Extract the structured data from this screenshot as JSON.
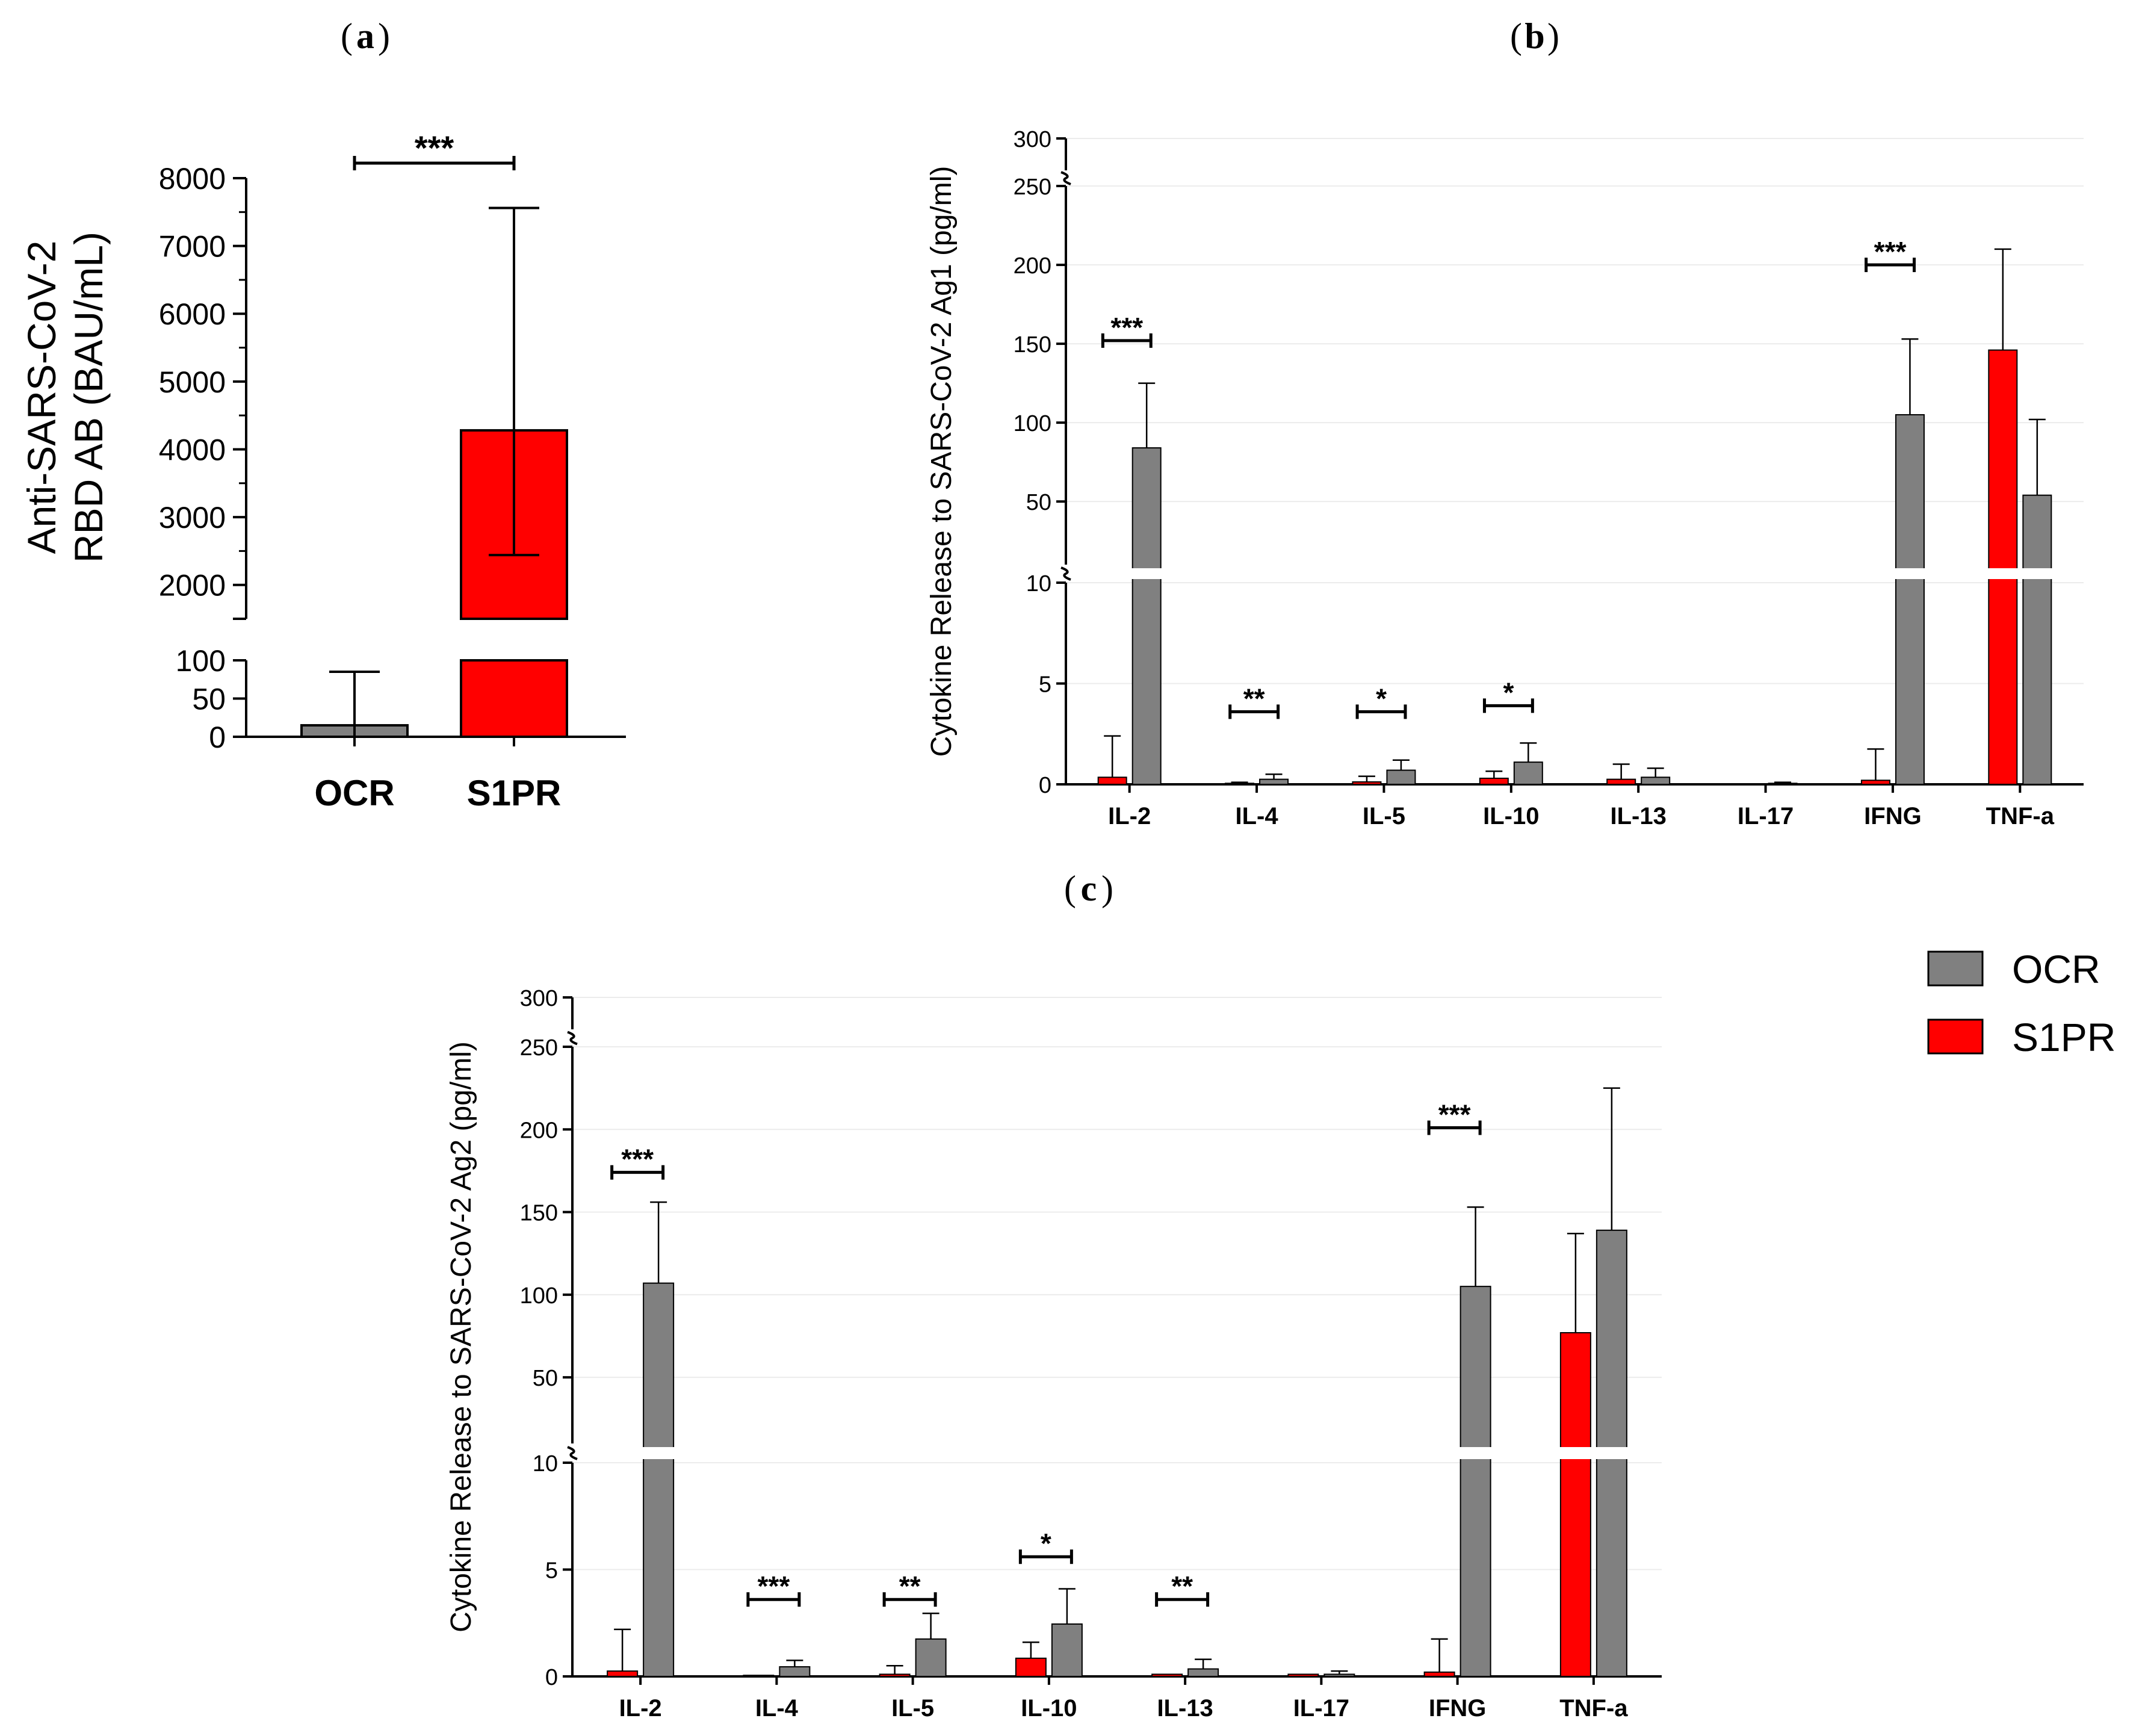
{
  "figure": {
    "colors": {
      "OCR": "#808080",
      "S1PR": "#ff0000",
      "axis": "#000000",
      "grid": "#ececec"
    },
    "legend": {
      "entries": [
        "OCR",
        "S1PR"
      ],
      "position": "right"
    }
  },
  "chart_data": [
    {
      "id": "a",
      "panel_label": "a",
      "type": "bar",
      "title": "",
      "categories": [
        "OCR",
        "S1PR"
      ],
      "values": [
        15,
        4280
      ],
      "error_plus": [
        70,
        3280
      ],
      "error_minus": [
        15,
        1840
      ],
      "ylabel_lines": [
        "Anti-SARS-CoV-2",
        "RBD AB (BAU/mL)"
      ],
      "broken_axis": {
        "lower_range": [
          0,
          100
        ],
        "lower_ticks": [
          0,
          50,
          100
        ],
        "upper_range": [
          1500,
          8000
        ],
        "upper_ticks": [
          2000,
          3000,
          4000,
          5000,
          6000,
          7000,
          8000
        ]
      },
      "significance": [
        {
          "from": "OCR",
          "to": "S1PR",
          "label": "***"
        }
      ]
    },
    {
      "id": "b",
      "panel_label": "b",
      "type": "bar",
      "title": "",
      "ylabel": "Cytokine Release to SARS-CoV-2 Ag1 (pg/ml)",
      "categories": [
        "IL-2",
        "IL-4",
        "IL-5",
        "IL-10",
        "IL-13",
        "IL-17",
        "IFNG",
        "TNF-a"
      ],
      "series": [
        {
          "name": "S1PR",
          "values": [
            0.35,
            0.05,
            0.12,
            0.3,
            0.25,
            0.0,
            0.2,
            146
          ],
          "error": [
            2.05,
            0.05,
            0.28,
            0.35,
            0.75,
            0.0,
            1.55,
            64
          ]
        },
        {
          "name": "OCR",
          "values": [
            84,
            0.25,
            0.7,
            1.1,
            0.35,
            0.05,
            105,
            54
          ],
          "error": [
            41,
            0.25,
            0.5,
            0.95,
            0.45,
            0.05,
            48,
            48
          ]
        }
      ],
      "broken_axis": {
        "lower_range": [
          0,
          10
        ],
        "lower_ticks": [
          0,
          5,
          10
        ],
        "mid_range": [
          10,
          250
        ],
        "mid_ticks": [
          50,
          100,
          150,
          200,
          250
        ],
        "top_range": [
          250,
          300
        ],
        "top_ticks": [
          300
        ]
      },
      "significance": [
        {
          "category": "IL-2",
          "label": "***",
          "y": 152
        },
        {
          "category": "IL-4",
          "label": "**",
          "y": 3.6
        },
        {
          "category": "IL-5",
          "label": "*",
          "y": 3.6
        },
        {
          "category": "IL-10",
          "label": "*",
          "y": 3.9
        },
        {
          "category": "IFNG",
          "label": "***",
          "y": 200
        }
      ]
    },
    {
      "id": "c",
      "panel_label": "c",
      "type": "bar",
      "title": "",
      "ylabel": "Cytokine Release to SARS-CoV-2 Ag2 (pg/ml)",
      "categories": [
        "IL-2",
        "IL-4",
        "IL-5",
        "IL-10",
        "IL-13",
        "IL-17",
        "IFNG",
        "TNF-a"
      ],
      "series": [
        {
          "name": "S1PR",
          "values": [
            0.25,
            0.05,
            0.1,
            0.85,
            0.1,
            0.1,
            0.2,
            77
          ],
          "error": [
            1.95,
            0.0,
            0.4,
            0.75,
            0.0,
            0.0,
            1.55,
            60
          ]
        },
        {
          "name": "OCR",
          "values": [
            107,
            0.45,
            1.75,
            2.45,
            0.35,
            0.1,
            105,
            139
          ],
          "error": [
            49,
            0.3,
            1.2,
            1.65,
            0.45,
            0.15,
            48,
            86
          ]
        }
      ],
      "broken_axis": {
        "lower_range": [
          0,
          10
        ],
        "lower_ticks": [
          0,
          5,
          10
        ],
        "mid_range": [
          10,
          250
        ],
        "mid_ticks": [
          50,
          100,
          150,
          200,
          250
        ],
        "top_range": [
          250,
          300
        ],
        "top_ticks": [
          300
        ]
      },
      "significance": [
        {
          "category": "IL-2",
          "label": "***",
          "y": 174
        },
        {
          "category": "IL-4",
          "label": "***",
          "y": 3.6
        },
        {
          "category": "IL-5",
          "label": "**",
          "y": 3.6
        },
        {
          "category": "IL-10",
          "label": "*",
          "y": 5.6
        },
        {
          "category": "IL-13",
          "label": "**",
          "y": 3.6
        },
        {
          "category": "IFNG",
          "label": "***",
          "y": 201
        }
      ]
    }
  ]
}
